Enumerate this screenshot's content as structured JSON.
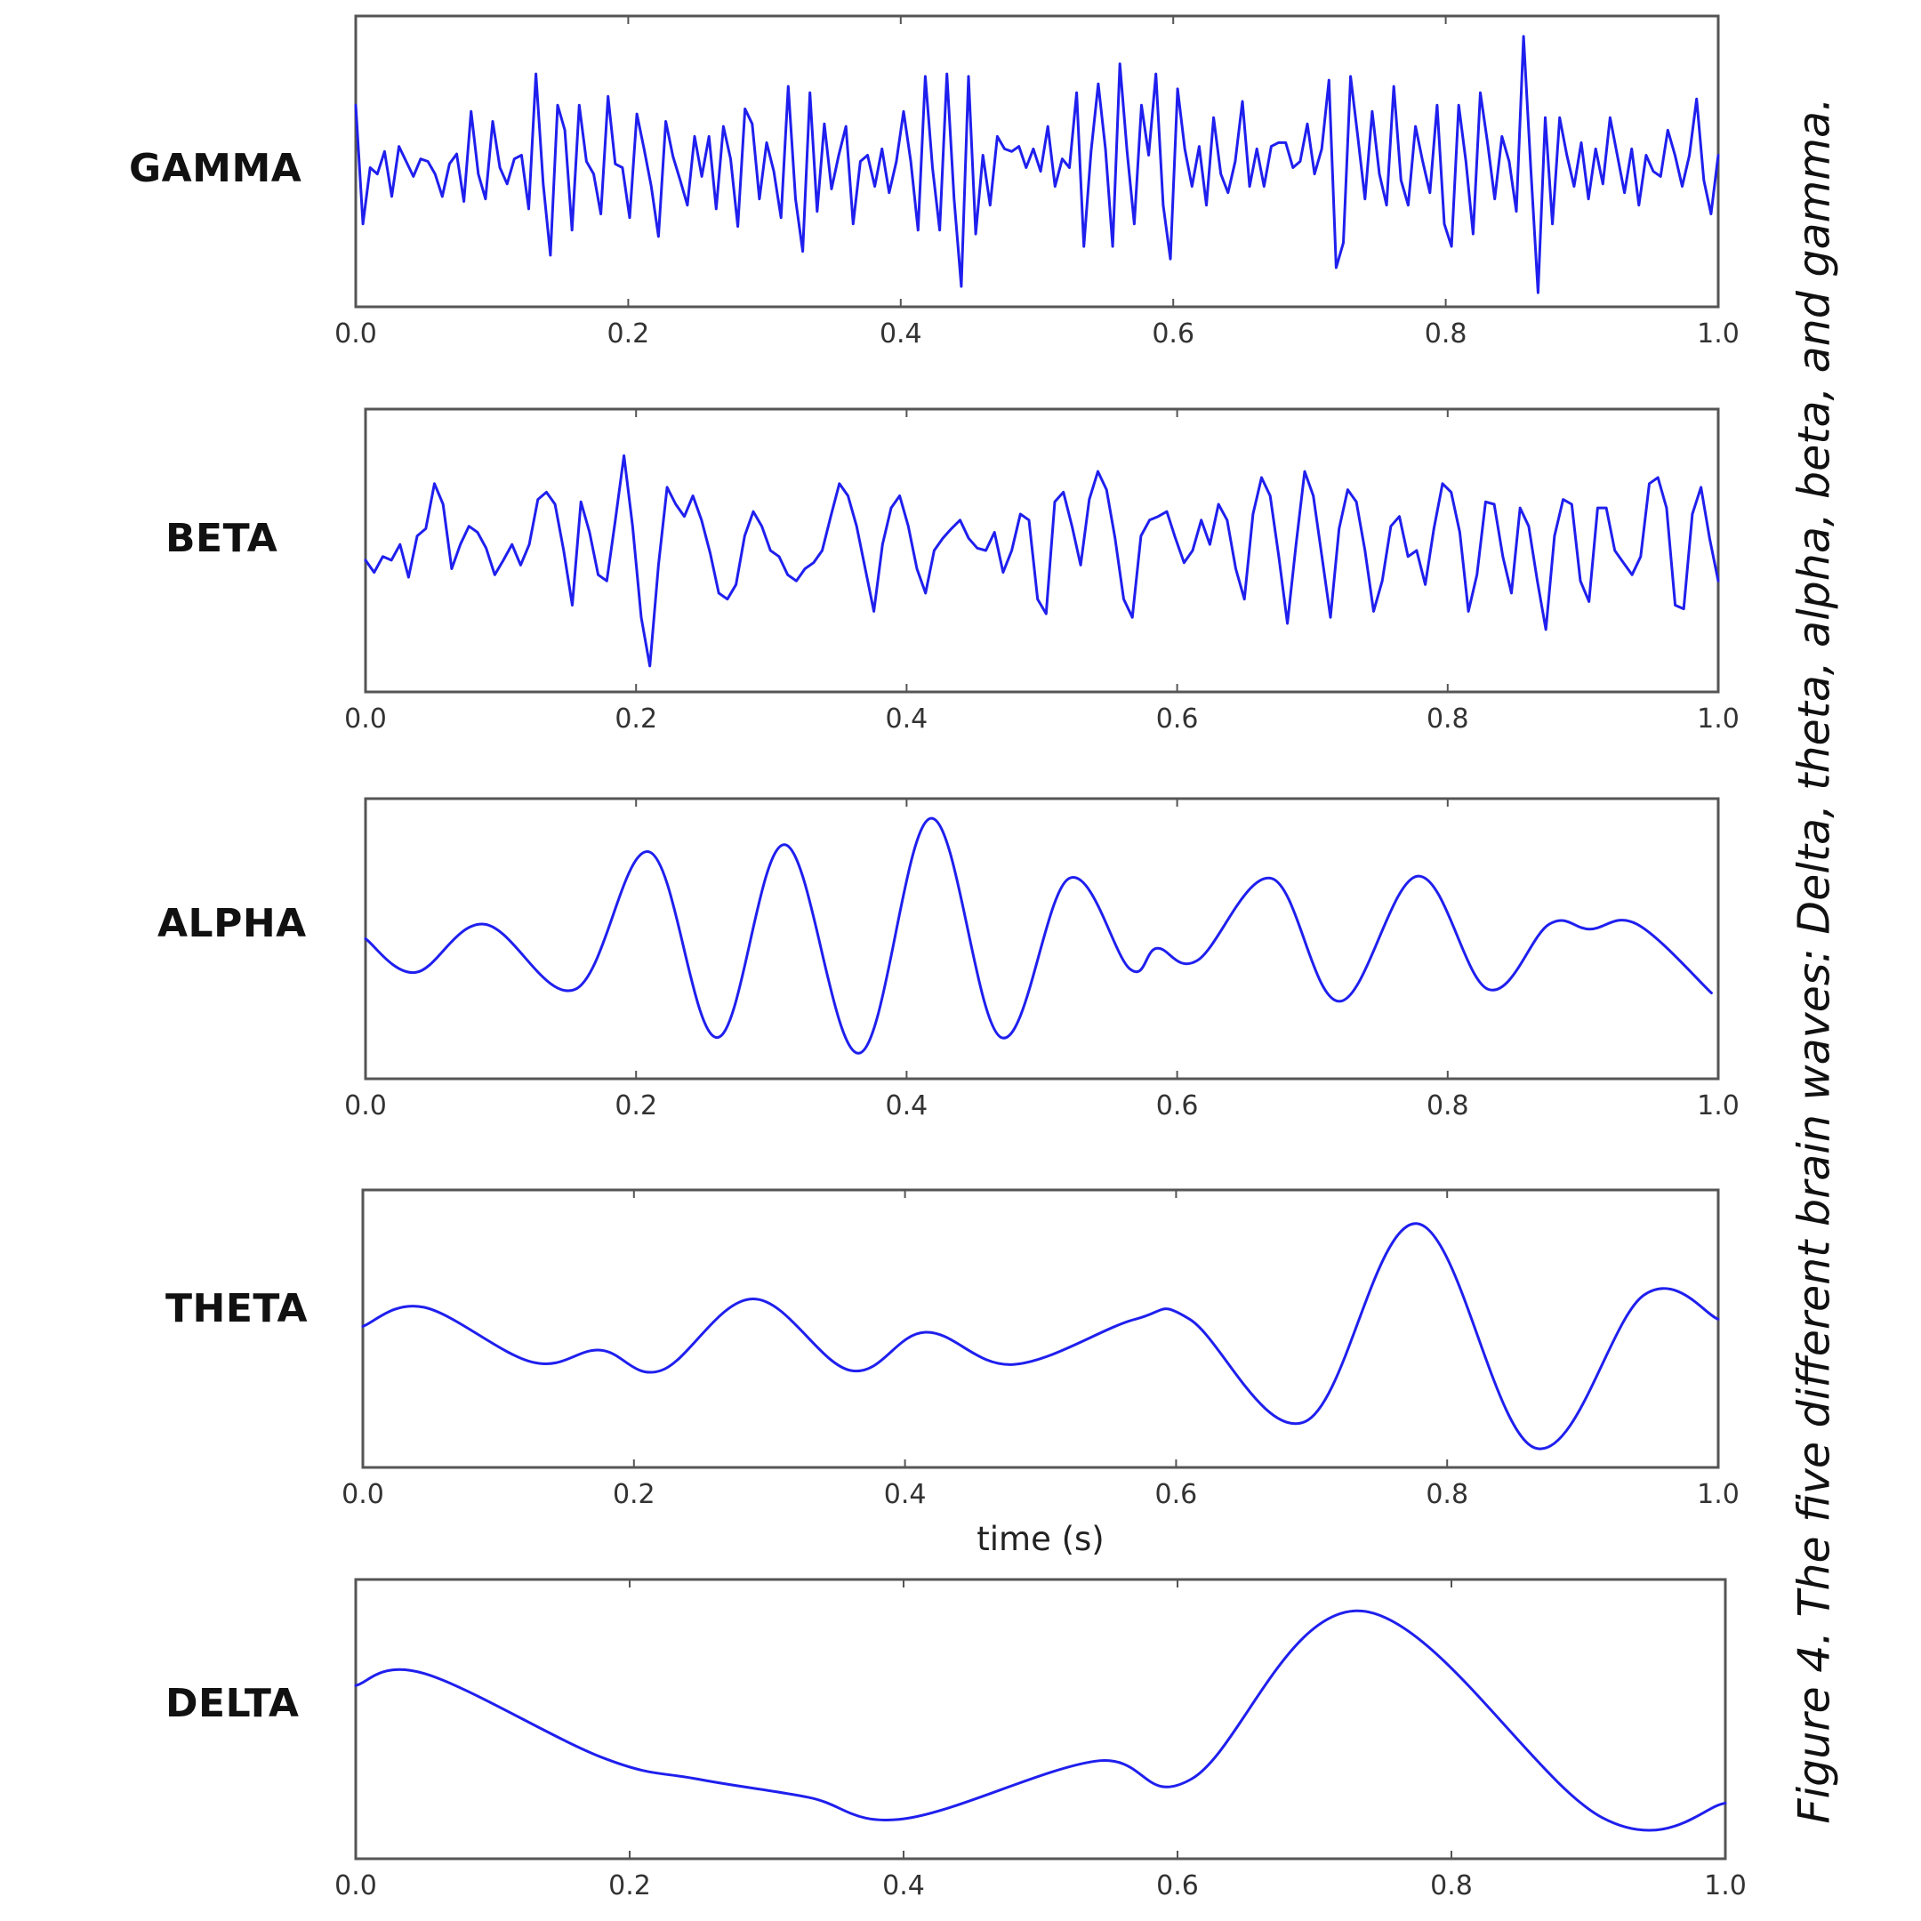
{
  "caption": "Figure 4. The five different brain waves: Delta, theta, alpha, beta, and gamma.",
  "line_color": "#1f1fee",
  "chart_data": [
    {
      "type": "line",
      "label": "GAMMA",
      "xlim": [
        0.0,
        1.0
      ],
      "ylim": [
        -1.0,
        1.0
      ],
      "xticks": [
        "0.0",
        "0.2",
        "0.4",
        "0.6",
        "0.8",
        "1.0"
      ],
      "xlabel": "",
      "grid": false,
      "y": [
        0.45,
        -0.5,
        -0.05,
        -0.1,
        0.08,
        -0.28,
        0.12,
        0.0,
        -0.12,
        0.02,
        0.0,
        -0.1,
        -0.28,
        -0.02,
        0.06,
        -0.32,
        0.4,
        -0.1,
        -0.3,
        0.32,
        -0.05,
        -0.18,
        0.02,
        0.05,
        -0.38,
        0.7,
        -0.18,
        -0.75,
        0.45,
        0.25,
        -0.55,
        0.45,
        0.0,
        -0.1,
        -0.42,
        0.52,
        -0.02,
        -0.05,
        -0.45,
        0.38,
        0.1,
        -0.2,
        -0.6,
        0.32,
        0.04,
        -0.15,
        -0.35,
        0.2,
        -0.12,
        0.2,
        -0.38,
        0.28,
        0.02,
        -0.52,
        0.42,
        0.3,
        -0.3,
        0.15,
        -0.08,
        -0.45,
        0.6,
        -0.3,
        -0.72,
        0.55,
        -0.4,
        0.3,
        -0.22,
        0.05,
        0.28,
        -0.5,
        0.0,
        0.05,
        -0.2,
        0.1,
        -0.25,
        0.0,
        0.4,
        0.0,
        -0.55,
        0.68,
        -0.05,
        -0.55,
        0.7,
        -0.3,
        -1.0,
        0.68,
        -0.58,
        0.05,
        -0.35,
        0.2,
        0.1,
        0.08,
        0.12,
        -0.05,
        0.1,
        -0.08,
        0.28,
        -0.2,
        0.02,
        -0.05,
        0.55,
        -0.68,
        0.08,
        0.62,
        0.1,
        -0.68,
        0.78,
        0.08,
        -0.5,
        0.45,
        0.05,
        0.7,
        -0.35,
        -0.78,
        0.58,
        0.1,
        -0.2,
        0.12,
        -0.35,
        0.35,
        -0.1,
        -0.25,
        0.0,
        0.48,
        -0.2,
        0.1,
        -0.2,
        0.12,
        0.15,
        0.15,
        -0.05,
        0.0,
        0.3,
        -0.1,
        0.1,
        0.65,
        -0.85,
        -0.65,
        0.68,
        0.2,
        -0.3,
        0.4,
        -0.1,
        -0.35,
        0.6,
        -0.15,
        -0.35,
        0.28,
        0.0,
        -0.25,
        0.45,
        -0.5,
        -0.68,
        0.45,
        0.0,
        -0.58,
        0.55,
        0.15,
        -0.3,
        0.2,
        0.0,
        -0.4,
        1.0,
        -0.05,
        -1.05,
        0.35,
        -0.5,
        0.35,
        0.05,
        -0.2,
        0.15,
        -0.3,
        0.1,
        -0.18,
        0.35,
        0.05,
        -0.25,
        0.1,
        -0.35,
        0.05,
        -0.08,
        -0.12,
        0.25,
        0.05,
        -0.2,
        0.05,
        0.5,
        -0.15,
        -0.42,
        0.05
      ]
    },
    {
      "type": "line",
      "label": "BETA",
      "xlim": [
        0.0,
        1.0
      ],
      "ylim": [
        -1.0,
        1.0
      ],
      "xticks": [
        "0.0",
        "0.2",
        "0.4",
        "0.6",
        "0.8",
        "1.0"
      ],
      "xlabel": "",
      "grid": false,
      "y": [
        -0.08,
        -0.18,
        -0.05,
        -0.08,
        0.05,
        -0.22,
        0.12,
        0.18,
        0.55,
        0.38,
        -0.15,
        0.05,
        0.2,
        0.15,
        0.02,
        -0.2,
        -0.08,
        0.05,
        -0.12,
        0.05,
        0.42,
        0.48,
        0.38,
        0.0,
        -0.45,
        0.4,
        0.15,
        -0.2,
        -0.25,
        0.25,
        0.78,
        0.2,
        -0.55,
        -0.95,
        -0.12,
        0.52,
        0.38,
        0.28,
        0.45,
        0.25,
        -0.02,
        -0.35,
        -0.4,
        -0.28,
        0.12,
        0.32,
        0.2,
        0.0,
        -0.05,
        -0.2,
        -0.25,
        -0.15,
        -0.1,
        0.0,
        0.28,
        0.55,
        0.45,
        0.2,
        -0.15,
        -0.5,
        0.05,
        0.35,
        0.45,
        0.2,
        -0.15,
        -0.35,
        0.0,
        0.1,
        0.18,
        0.25,
        0.1,
        0.02,
        0.0,
        0.15,
        -0.18,
        0.0,
        0.3,
        0.25,
        -0.4,
        -0.52,
        0.4,
        0.48,
        0.2,
        -0.12,
        0.42,
        0.65,
        0.5,
        0.1,
        -0.4,
        -0.55,
        0.12,
        0.25,
        0.28,
        0.32,
        0.1,
        -0.1,
        0.0,
        0.25,
        0.05,
        0.38,
        0.25,
        -0.15,
        -0.4,
        0.3,
        0.6,
        0.45,
        -0.05,
        -0.6,
        0.05,
        0.65,
        0.45,
        -0.05,
        -0.55,
        0.18,
        0.5,
        0.4,
        0.0,
        -0.5,
        -0.25,
        0.2,
        0.28,
        -0.05,
        0.0,
        -0.28,
        0.18,
        0.55,
        0.48,
        0.15,
        -0.5,
        -0.2,
        0.4,
        0.38,
        -0.05,
        -0.35,
        0.35,
        0.2,
        -0.25,
        -0.65,
        0.12,
        0.42,
        0.38,
        -0.25,
        -0.42,
        0.35,
        0.35,
        0.0,
        -0.1,
        -0.2,
        -0.05,
        0.55,
        0.6,
        0.35,
        -0.45,
        -0.48,
        0.3,
        0.52,
        0.1,
        -0.25
      ]
    },
    {
      "type": "line",
      "label": "ALPHA",
      "xlim": [
        0.0,
        1.0
      ],
      "ylim": [
        -1.0,
        1.0
      ],
      "xticks": [
        "0.0",
        "0.2",
        "0.4",
        "0.6",
        "0.8",
        "1.0"
      ],
      "xlabel": "",
      "grid": false,
      "y": [
        0.0,
        -0.28,
        0.12,
        -0.42,
        0.72,
        -0.82,
        0.78,
        -0.95,
        1.0,
        -0.82,
        0.5,
        -0.25,
        -0.08,
        -0.18,
        0.5,
        -0.52,
        0.52,
        -0.42,
        0.12,
        0.08,
        0.12,
        -0.45
      ],
      "x": [
        0.0,
        0.037,
        0.088,
        0.155,
        0.21,
        0.26,
        0.31,
        0.365,
        0.418,
        0.47,
        0.52,
        0.565,
        0.585,
        0.615,
        0.67,
        0.72,
        0.778,
        0.83,
        0.875,
        0.905,
        0.94,
        0.995
      ]
    },
    {
      "type": "line",
      "label": "THETA",
      "xlim": [
        0.0,
        1.0
      ],
      "ylim": [
        -1.0,
        1.0
      ],
      "xticks": [
        "0.0",
        "0.2",
        "0.4",
        "0.6",
        "0.8",
        "1.0"
      ],
      "xlabel": "time (s)",
      "grid": false,
      "y": [
        0.02,
        0.18,
        -0.28,
        -0.18,
        -0.35,
        0.25,
        -0.35,
        -0.03,
        -0.3,
        0.08,
        0.08,
        -0.78,
        0.88,
        -1.0,
        0.28,
        0.08
      ],
      "x": [
        0.0,
        0.045,
        0.125,
        0.175,
        0.22,
        0.288,
        0.36,
        0.415,
        0.48,
        0.57,
        0.61,
        0.695,
        0.778,
        0.865,
        0.945,
        1.0
      ]
    },
    {
      "type": "line",
      "label": "DELTA",
      "xlim": [
        0.0,
        1.0
      ],
      "ylim": [
        -1.0,
        1.0
      ],
      "xticks": [
        "0.0",
        "0.2",
        "0.4",
        "0.6",
        "0.8",
        "1.0"
      ],
      "xlabel": "",
      "grid": false,
      "y": [
        0.28,
        0.38,
        -0.32,
        -0.5,
        -0.65,
        -0.83,
        -0.35,
        -0.5,
        0.9,
        -0.82,
        -0.7
      ],
      "x": [
        0.0,
        0.05,
        0.18,
        0.25,
        0.33,
        0.4,
        0.54,
        0.61,
        0.735,
        0.91,
        1.0
      ]
    }
  ]
}
